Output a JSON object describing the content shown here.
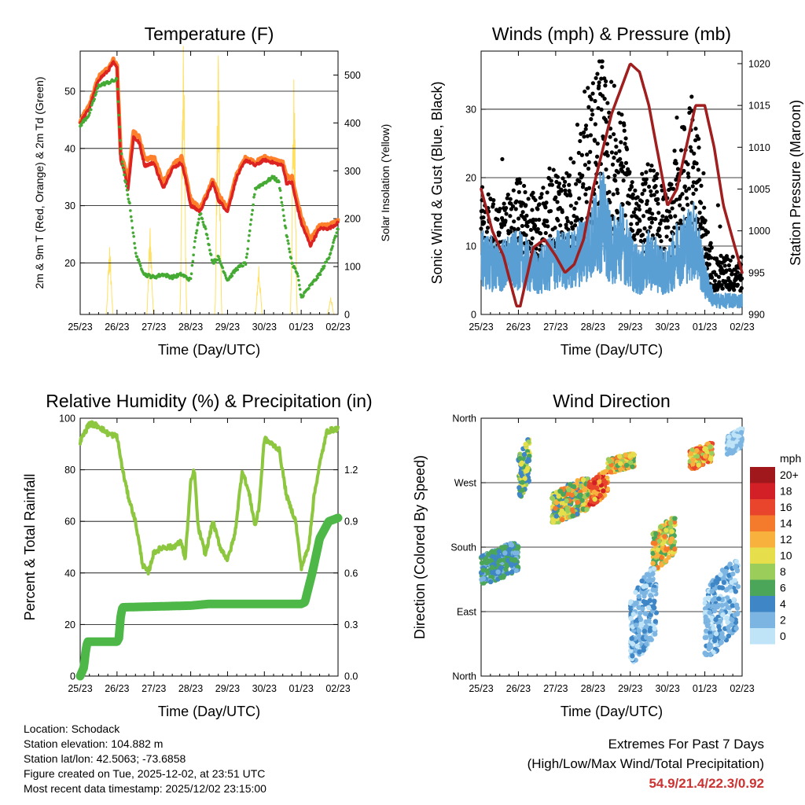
{
  "colors": {
    "temp_red": "#dd2222",
    "temp_orange": "#ff7f2a",
    "dewpoint_green": "#44aa33",
    "solar_yellow": "#ffe060",
    "wind_blue": "#5a9fd4",
    "gust_black": "#000000",
    "pressure_maroon": "#a01e1e",
    "rh_lightgreen": "#8dc63f",
    "precip_green": "#4db848",
    "grid": "#000000",
    "extremes_red": "#cc3333"
  },
  "time_ticks": [
    "25/23",
    "26/23",
    "27/23",
    "28/23",
    "29/23",
    "30/23",
    "01/23",
    "02/23"
  ],
  "time_label": "Time (Day/UTC)",
  "info": {
    "location": "Location: Schodack",
    "elevation": "Station elevation: 104.882 m",
    "latlon": "Station lat/lon: 42.5063; -73.6858",
    "created": "Figure created on Tue, 2025-12-02, at 23:51 UTC",
    "recent": "Most recent data timestamp: 2025/12/02 23:15:00"
  },
  "extremes": {
    "title": "Extremes For Past 7 Days",
    "subtitle": "(High/Low/Max Wind/Total Precipitation)",
    "values": "54.9/21.4/22.3/0.92"
  },
  "chart_data": [
    {
      "type": "line",
      "title": "Temperature (F)",
      "xlabel": "Time (Day/UTC)",
      "ylabel": "2m & 9m T (Red, Orange) & 2m Td (Green)",
      "y2label": "Solar Insolation (Yellow)",
      "x_days": [
        0,
        7
      ],
      "ylim": [
        11,
        57
      ],
      "y_ticks": [
        20,
        30,
        40,
        50
      ],
      "y2lim": [
        0,
        550
      ],
      "y2_ticks": [
        0,
        100,
        200,
        300,
        400,
        500
      ],
      "series": [
        {
          "name": "2m T",
          "x": [
            0,
            0.25,
            0.5,
            0.75,
            0.9,
            1.0,
            1.1,
            1.2,
            1.3,
            1.45,
            1.6,
            1.75,
            2.0,
            2.25,
            2.5,
            2.75,
            2.85,
            3.0,
            3.25,
            3.4,
            3.6,
            3.75,
            4.0,
            4.25,
            4.5,
            4.75,
            5.0,
            5.25,
            5.5,
            5.6,
            5.75,
            5.85,
            6.0,
            6.25,
            6.5,
            6.75,
            7.0
          ],
          "values": [
            44.5,
            47,
            52,
            53.5,
            55,
            54,
            38,
            36,
            33,
            42,
            41,
            37,
            37.5,
            33,
            36.5,
            37.5,
            35,
            30,
            29,
            31,
            34,
            31,
            29,
            35,
            38,
            37,
            38,
            37.5,
            37,
            34,
            34,
            31,
            27,
            23,
            26,
            26,
            27
          ]
        },
        {
          "name": "9m T",
          "x": [
            0,
            0.25,
            0.5,
            0.75,
            0.9,
            1.0,
            1.1,
            1.2,
            1.3,
            1.45,
            1.6,
            1.75,
            2.0,
            2.25,
            2.5,
            2.75,
            2.85,
            3.0,
            3.25,
            3.4,
            3.6,
            3.75,
            4.0,
            4.25,
            4.5,
            4.75,
            5.0,
            5.25,
            5.5,
            5.6,
            5.75,
            5.85,
            6.0,
            6.25,
            6.5,
            6.75,
            7.0
          ],
          "values": [
            44.8,
            47.5,
            52.5,
            54,
            55.5,
            54.5,
            39,
            37,
            34,
            43,
            42,
            38,
            38.5,
            34,
            37,
            38.5,
            36,
            31,
            29.5,
            31.5,
            34.5,
            32,
            29.5,
            35.5,
            38.5,
            37.5,
            38.5,
            38,
            37.5,
            35,
            35,
            32,
            28,
            24,
            26.5,
            26.5,
            27.5
          ]
        },
        {
          "name": "2m Td",
          "x": [
            0,
            0.25,
            0.5,
            0.75,
            1.0,
            1.1,
            1.2,
            1.35,
            1.5,
            1.6,
            1.75,
            2.0,
            2.25,
            2.5,
            2.75,
            3.0,
            3.1,
            3.25,
            3.4,
            3.6,
            3.75,
            4.0,
            4.25,
            4.5,
            4.75,
            5.0,
            5.25,
            5.4,
            5.6,
            5.75,
            5.9,
            6.0,
            6.25,
            6.5,
            6.75,
            7.0
          ],
          "values": [
            44,
            46,
            51,
            51.5,
            52,
            40,
            35,
            30,
            22,
            20,
            18,
            17.5,
            18,
            17.5,
            18,
            17,
            23,
            29,
            26,
            20,
            21,
            17,
            19,
            20,
            33,
            34,
            35,
            34,
            25,
            20,
            18,
            14,
            16,
            18,
            21,
            26
          ]
        },
        {
          "name": "Solar Insolation",
          "axis": "y2",
          "peaks_x": [
            0.8,
            1.9,
            2.8,
            3.75,
            4.85,
            5.8,
            6.8
          ],
          "peaks": [
            140,
            180,
            560,
            540,
            100,
            490,
            35
          ]
        }
      ]
    },
    {
      "type": "line",
      "title": "Winds (mph) & Pressure (mb)",
      "xlabel": "Time (Day/UTC)",
      "ylabel": "Sonic Wind & Gust (Blue, Black)",
      "y2label": "Station Pressure (Maroon)",
      "x_days": [
        0,
        7
      ],
      "ylim": [
        0,
        38.5
      ],
      "y_ticks": [
        0,
        10,
        20,
        30
      ],
      "y2lim": [
        990,
        1021.5
      ],
      "y2_ticks": [
        990,
        995,
        1000,
        1005,
        1010,
        1015,
        1020
      ],
      "series": [
        {
          "name": "Sonic Wind",
          "x": [
            0,
            0.5,
            1.0,
            1.5,
            2.0,
            2.5,
            2.75,
            3.0,
            3.25,
            3.5,
            3.75,
            4.0,
            4.25,
            4.5,
            4.75,
            5.0,
            5.25,
            5.5,
            5.75,
            6.0,
            6.25,
            6.5,
            7.0
          ],
          "values": [
            8,
            7,
            8,
            6,
            8,
            8,
            10,
            11,
            14,
            9,
            11,
            8,
            6,
            8,
            7,
            6,
            9,
            10,
            11,
            5,
            2,
            2,
            2
          ]
        },
        {
          "name": "Gust",
          "x": [
            0,
            0.5,
            1.0,
            1.5,
            2.0,
            2.5,
            2.75,
            3.0,
            3.25,
            3.5,
            3.75,
            4.0,
            4.25,
            4.5,
            4.75,
            5.0,
            5.25,
            5.5,
            5.75,
            6.0,
            6.25,
            6.5,
            7.0
          ],
          "values": [
            13,
            11,
            14,
            12,
            15,
            14,
            20,
            24,
            28,
            18,
            22,
            14,
            12,
            16,
            14,
            12,
            18,
            20,
            22,
            10,
            6,
            6,
            6
          ]
        },
        {
          "name": "Station Pressure",
          "axis": "y2",
          "x": [
            0,
            0.3,
            0.6,
            0.95,
            1.05,
            1.4,
            1.7,
            2.0,
            2.25,
            2.5,
            2.75,
            3.0,
            3.5,
            4.0,
            4.25,
            4.5,
            4.75,
            5.0,
            5.25,
            5.5,
            5.75,
            6.0,
            6.25,
            6.5,
            7.0
          ],
          "values": [
            1005,
            1000,
            997,
            991,
            991,
            998,
            999,
            997,
            995,
            996,
            999,
            1005,
            1014,
            1020,
            1019,
            1015,
            1009,
            1003,
            1005,
            1010,
            1015,
            1015,
            1010,
            1003,
            995
          ]
        }
      ]
    },
    {
      "type": "line",
      "title": "Relative Humidity (%) & Precipitation (in)",
      "xlabel": "Time (Day/UTC)",
      "ylabel": "Percent & Total Rainfall",
      "x_days": [
        0,
        7
      ],
      "ylim": [
        0,
        100
      ],
      "y_ticks": [
        0,
        20,
        40,
        60,
        80,
        100
      ],
      "y2lim": [
        0,
        1.5
      ],
      "y2_ticks": [
        "0.0",
        "0.3",
        "0.6",
        "0.9",
        "1.2"
      ],
      "series": [
        {
          "name": "Relative Humidity",
          "x": [
            0,
            0.25,
            0.5,
            0.75,
            1.0,
            1.15,
            1.3,
            1.5,
            1.7,
            1.85,
            2.0,
            2.25,
            2.5,
            2.75,
            2.85,
            3.0,
            3.1,
            3.2,
            3.4,
            3.6,
            3.8,
            4.0,
            4.2,
            4.4,
            4.6,
            4.75,
            4.85,
            5.0,
            5.2,
            5.4,
            5.6,
            5.85,
            6.0,
            6.2,
            6.35,
            6.5,
            6.7,
            7.0
          ],
          "values": [
            91,
            98,
            97,
            94,
            93,
            80,
            70,
            60,
            43,
            40,
            48,
            50,
            50,
            52,
            45,
            75,
            80,
            58,
            47,
            60,
            50,
            45,
            55,
            80,
            70,
            58,
            65,
            92,
            90,
            88,
            70,
            60,
            42,
            50,
            70,
            82,
            95,
            96
          ]
        },
        {
          "name": "Total Precipitation",
          "axis": "y2",
          "x": [
            0,
            0.1,
            0.15,
            0.2,
            1.0,
            1.05,
            1.1,
            1.15,
            3.0,
            3.5,
            4.0,
            5.0,
            5.9,
            6.0,
            6.1,
            6.3,
            6.5,
            6.75,
            7.0
          ],
          "values": [
            0,
            0.05,
            0.15,
            0.2,
            0.2,
            0.22,
            0.35,
            0.4,
            0.41,
            0.42,
            0.42,
            0.42,
            0.42,
            0.42,
            0.43,
            0.6,
            0.8,
            0.9,
            0.92
          ]
        }
      ]
    },
    {
      "type": "scatter",
      "title": "Wind Direction",
      "xlabel": "Time (Day/UTC)",
      "ylabel": "Direction (Colored By Speed)",
      "x_days": [
        0,
        7
      ],
      "ylim": [
        0,
        360
      ],
      "y_ticks": [
        "North",
        "East",
        "South",
        "West",
        "North"
      ],
      "legend_title": "mph",
      "legend_labels": [
        "20+",
        "18",
        "16",
        "14",
        "12",
        "10",
        "8",
        "6",
        "4",
        "2",
        "0"
      ],
      "legend_colors": [
        "#a0171c",
        "#d32026",
        "#e8452c",
        "#f37b2b",
        "#f9b13e",
        "#e6de4b",
        "#9acd5a",
        "#4ca65a",
        "#3e86c5",
        "#7db5e2",
        "#bfe3f7"
      ],
      "clusters": [
        {
          "x": [
            0,
            1.0
          ],
          "dir": [
            130,
            185
          ],
          "speed": [
            3,
            8
          ]
        },
        {
          "x": [
            1.0,
            1.3
          ],
          "dir": [
            250,
            330
          ],
          "speed": [
            4,
            12
          ]
        },
        {
          "x": [
            1.9,
            2.9
          ],
          "dir": [
            215,
            275
          ],
          "speed": [
            4,
            16
          ]
        },
        {
          "x": [
            2.9,
            3.4
          ],
          "dir": [
            240,
            285
          ],
          "speed": [
            10,
            20
          ]
        },
        {
          "x": [
            3.4,
            4.1
          ],
          "dir": [
            285,
            310
          ],
          "speed": [
            6,
            16
          ]
        },
        {
          "x": [
            4.6,
            5.2
          ],
          "dir": [
            150,
            220
          ],
          "speed": [
            6,
            16
          ]
        },
        {
          "x": [
            4.0,
            4.7
          ],
          "dir": [
            20,
            150
          ],
          "speed": [
            1,
            5
          ]
        },
        {
          "x": [
            5.6,
            6.2
          ],
          "dir": [
            290,
            325
          ],
          "speed": [
            8,
            18
          ]
        },
        {
          "x": [
            6.0,
            6.9
          ],
          "dir": [
            30,
            160
          ],
          "speed": [
            1,
            5
          ]
        },
        {
          "x": [
            6.6,
            7.0
          ],
          "dir": [
            310,
            345
          ],
          "speed": [
            1,
            4
          ]
        }
      ]
    }
  ]
}
